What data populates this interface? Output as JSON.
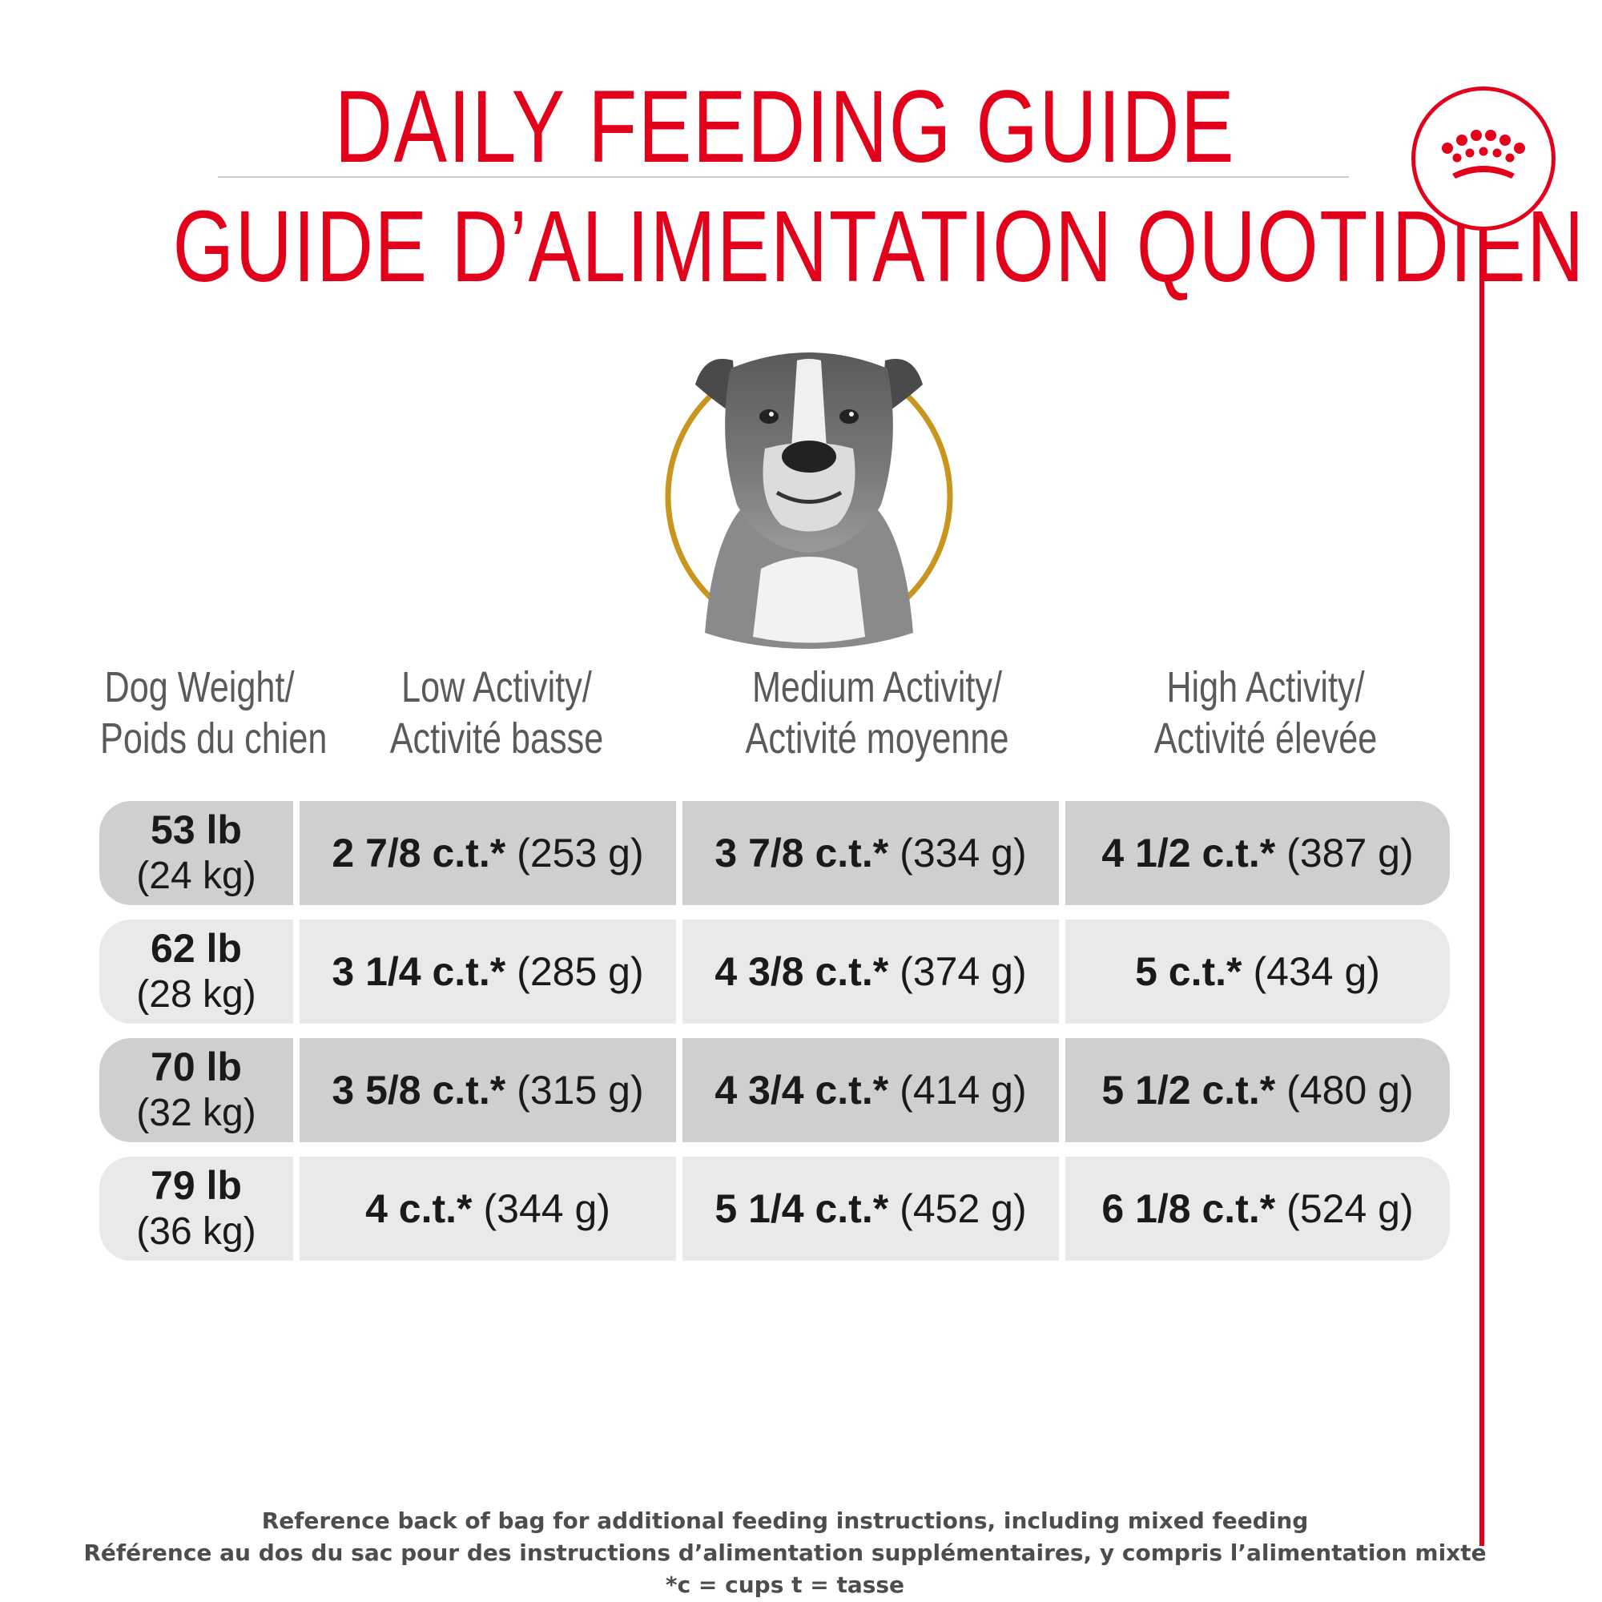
{
  "title_en": "DAILY FEEDING GUIDE",
  "title_fr": "GUIDE D’ALIMENTATION QUOTIDIEN",
  "brand": {
    "accent": "#e2001a",
    "ring": "#c8961e",
    "logo": "crown-icon"
  },
  "table": {
    "headers": [
      {
        "line1": "Dog Weight/",
        "line2": "Poids du chien"
      },
      {
        "line1": "Low Activity/",
        "line2": "Activité basse"
      },
      {
        "line1": "Medium Activity/",
        "line2": "Activité moyenne"
      },
      {
        "line1": "High Activity/",
        "line2": "Activité élevée"
      }
    ],
    "rows": [
      {
        "lb": "53 lb",
        "kg": "(24 kg)",
        "low": {
          "amt": "2 7/8 c.t.*",
          "g": "(253 g)"
        },
        "med": {
          "amt": "3 7/8 c.t.*",
          "g": "(334 g)"
        },
        "high": {
          "amt": "4 1/2 c.t.*",
          "g": "(387 g)"
        }
      },
      {
        "lb": "62 lb",
        "kg": "(28 kg)",
        "low": {
          "amt": "3 1/4 c.t.*",
          "g": "(285 g)"
        },
        "med": {
          "amt": "4 3/8 c.t.*",
          "g": "(374 g)"
        },
        "high": {
          "amt": "5 c.t.*",
          "g": "(434 g)"
        }
      },
      {
        "lb": "70 lb",
        "kg": "(32 kg)",
        "low": {
          "amt": "3 5/8 c.t.*",
          "g": "(315 g)"
        },
        "med": {
          "amt": "4 3/4 c.t.*",
          "g": "(414 g)"
        },
        "high": {
          "amt": "5 1/2 c.t.*",
          "g": "(480 g)"
        }
      },
      {
        "lb": "79 lb",
        "kg": "(36 kg)",
        "low": {
          "amt": "4 c.t.*",
          "g": "(344 g)"
        },
        "med": {
          "amt": "5 1/4 c.t.*",
          "g": "(452 g)"
        },
        "high": {
          "amt": "6 1/8 c.t.*",
          "g": "(524 g)"
        }
      }
    ]
  },
  "footer": {
    "line1": "Reference back of bag for additional feeding instructions, including mixed feeding",
    "line2": "Référence au dos du sac pour des instructions d’alimentation supplémentaires, y compris l’alimentation mixte",
    "line3": "*c = cups t = tasse"
  }
}
